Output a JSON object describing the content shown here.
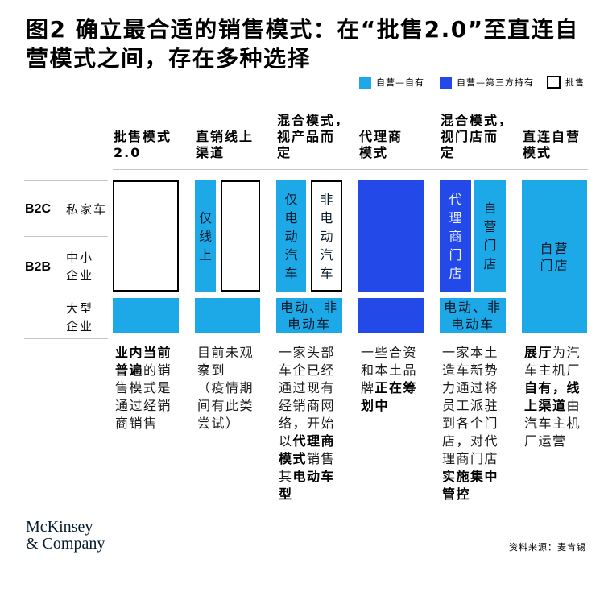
{
  "title": "图2 确立最合适的销售模式：在“批售2.0”至直连自\n营模式之间，存在多种选择",
  "legend": [
    {
      "label": "自营—自有",
      "color": "#1DA8E8"
    },
    {
      "label": "自营—第三方持有",
      "color": "#2349E9"
    },
    {
      "label": "批售",
      "color": "#FFFFFF",
      "border": "#000000"
    }
  ],
  "rows": [
    {
      "segment": "B2C",
      "label": "私家车"
    },
    {
      "segment": "B2B",
      "label": "中小\n企业"
    },
    {
      "label": "大型\n企业"
    }
  ],
  "columns": [
    {
      "header": "批售模式\n2.0",
      "desc": [
        "业内当前\n普遍",
        "的销\n售模式是\n通过经销\n商销售"
      ]
    },
    {
      "header": "直销线上\n渠道",
      "boxes": {
        "online": "仅线上"
      },
      "desc": [
        "目前未观\n察到\n（疫情期\n间有此类\n尝试）"
      ]
    },
    {
      "header": "混合模式，\n视产品而\n定",
      "boxes": {
        "ev": "仅电动汽车",
        "non_ev": "非电动汽车",
        "large_enterprise": "电动、非\n电动车"
      },
      "desc": [
        "一家头部\n车企已经\n通过现有\n经销商网\n络，开始\n以",
        "代理商\n模式",
        "销售\n其",
        "电动车\n型"
      ]
    },
    {
      "header": "代理商\n模式",
      "desc": [
        "一些合资\n和本土品\n牌",
        "正在筹\n划中"
      ]
    },
    {
      "header": "混合模式，\n视门店而\n定",
      "boxes": {
        "agency_store": "代理商门店",
        "own_store": "自营门店",
        "large_enterprise": "电动、非\n电动车"
      },
      "desc": [
        "一家本土\n造车新势\n力通过将\n员工派驻\n到各个门\n店，对代\n理商门店\n",
        "实施集中\n管控"
      ]
    },
    {
      "header": "直连自营\n模式",
      "boxes": {
        "own_store": "自营\n门店"
      },
      "desc": [
        "展厅",
        "为汽\n车主机厂\n",
        "自有，线\n上渠道",
        "由\n汽车主机\n厂运营"
      ]
    }
  ],
  "footer": {
    "logo": [
      "McKinsey",
      "& Company"
    ],
    "source": "资料来源：麦肯锡"
  }
}
